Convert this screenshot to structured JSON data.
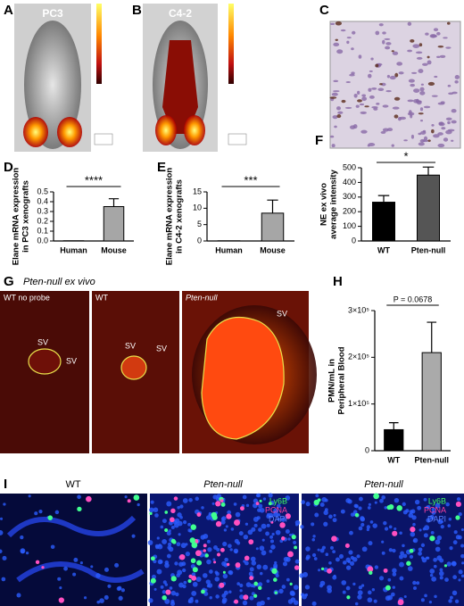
{
  "chart_data": [
    {
      "type": "bar",
      "panel": "D",
      "ylabel": [
        "Elane mRNA expression",
        "in PC3 xenografts"
      ],
      "categories": [
        "Human",
        "Mouse"
      ],
      "values": [
        0.002,
        0.35
      ],
      "errors": [
        0,
        0.08
      ],
      "colors": [
        "#ffffff",
        "#a6a6a6"
      ],
      "ylim": [
        0,
        0.5
      ],
      "yticks": [
        {
          "value": 0,
          "label": "0.0"
        },
        {
          "value": 0.1,
          "label": "0.1"
        },
        {
          "value": 0.2,
          "label": "0.2"
        },
        {
          "value": 0.3,
          "label": "0.3"
        },
        {
          "value": 0.4,
          "label": "0.4"
        },
        {
          "value": 0.5,
          "label": "0.5"
        }
      ],
      "significance": "****"
    },
    {
      "type": "bar",
      "panel": "E",
      "ylabel": [
        "Elane mRNA expression",
        "in C4-2 xenografts"
      ],
      "categories": [
        "Human",
        "Mouse"
      ],
      "values": [
        0.05,
        8.5
      ],
      "errors": [
        0,
        4
      ],
      "colors": [
        "#ffffff",
        "#a6a6a6"
      ],
      "ylim": [
        0,
        15
      ],
      "yticks": [
        0,
        5,
        10,
        15
      ],
      "significance": "***"
    },
    {
      "type": "bar",
      "panel": "F",
      "ylabel": [
        "NE ex vivo",
        "average intensity"
      ],
      "categories": [
        "WT",
        "Pten-null"
      ],
      "values": [
        265,
        450
      ],
      "errors": [
        45,
        55
      ],
      "colors": [
        "#000000",
        "#555555"
      ],
      "ylim": [
        0,
        500
      ],
      "yticks": [
        0,
        100,
        200,
        300,
        400,
        500
      ],
      "significance": "*"
    },
    {
      "type": "bar",
      "panel": "H",
      "ylabel": [
        "PMN/mL in",
        "Peripheral Blood"
      ],
      "categories": [
        "WT",
        "Pten-null"
      ],
      "values": [
        45000,
        210000
      ],
      "errors": [
        15000,
        65000
      ],
      "colors": [
        "#000000",
        "#aaaaaa"
      ],
      "ylim": [
        0,
        300000
      ],
      "yticks": [
        0,
        {
          "value": 100000,
          "label": "1×10⁵"
        },
        {
          "value": 200000,
          "label": "2×10⁵"
        },
        {
          "value": 300000,
          "label": "3×10⁵"
        }
      ],
      "significance": "P = 0.0678"
    }
  ],
  "images": {
    "A": {
      "panel": "A",
      "label": "PC3"
    },
    "B": {
      "panel": "B",
      "label": "C4-2"
    },
    "C": {
      "panel": "C"
    },
    "G": {
      "panel": "G",
      "title": "Pten-null ex vivo",
      "subpanels": [
        {
          "label": "WT no probe",
          "sv": [
            "SV",
            "SV"
          ]
        },
        {
          "label": "WT",
          "sv": [
            "SV",
            "SV"
          ]
        },
        {
          "label": "Pten-null",
          "sv": [
            "SV"
          ]
        }
      ]
    },
    "I": {
      "panel": "I",
      "subpanels": [
        {
          "label": "WT"
        },
        {
          "label": "Pten-null",
          "legend": [
            "Ly6B",
            "PCNA",
            "DAPI"
          ]
        },
        {
          "label": "Pten-null",
          "legend": [
            "Ly6B",
            "PCNA",
            "DAPI"
          ]
        }
      ]
    }
  }
}
